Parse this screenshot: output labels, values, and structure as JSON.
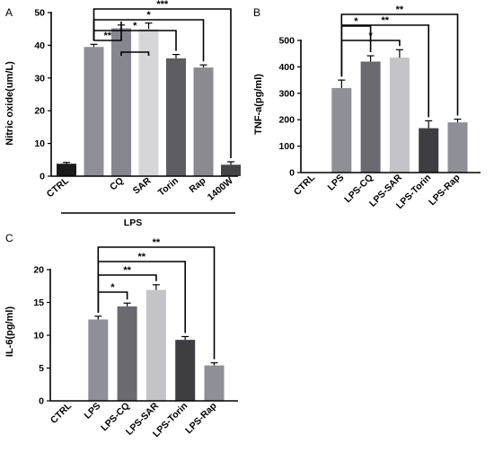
{
  "chart_data": [
    {
      "id": "A",
      "type": "bar",
      "panel_label": "A",
      "ylabel": "Nitric oxide(um/L)",
      "ylim": [
        0,
        50
      ],
      "yticks": [
        0,
        10,
        20,
        30,
        40,
        50
      ],
      "categories": [
        "CTRL",
        "",
        "CQ",
        "SAR",
        "Torin",
        "Rap",
        "1400W"
      ],
      "values": [
        3.8,
        39.5,
        45.2,
        45.0,
        36.0,
        33.2,
        3.5
      ],
      "errors": [
        0.4,
        0.8,
        1.0,
        1.8,
        1.2,
        0.8,
        0.9
      ],
      "colors": [
        "#1a1a1a",
        "#8f8f97",
        "#86868e",
        "#d6d6d8",
        "#5e5e62",
        "#8a8a90",
        "#444446"
      ],
      "group_label": "LPS",
      "significance": [
        {
          "from": 1,
          "to": 6,
          "label": "***"
        },
        {
          "from": 1,
          "to": 5,
          "label": "*"
        },
        {
          "from": 1,
          "to": 4,
          "label": "*"
        },
        {
          "from": 1,
          "to": 2,
          "label": "**"
        },
        {
          "from": 2,
          "to": 3,
          "label": ""
        }
      ]
    },
    {
      "id": "B",
      "type": "bar",
      "panel_label": "B",
      "ylabel": "TNF-a(pg/ml)",
      "ylim": [
        0,
        500
      ],
      "yticks": [
        0,
        100,
        200,
        300,
        400,
        500
      ],
      "categories": [
        "CTRL",
        "LPS",
        "LPS-CQ",
        "LPS-SAR",
        "LPS-Torin",
        "LPS-Rap"
      ],
      "values": [
        0,
        320,
        420,
        435,
        168,
        190
      ],
      "errors": [
        0,
        30,
        22,
        30,
        28,
        12
      ],
      "colors": [
        "#ffffff",
        "#8f8f97",
        "#6a6a70",
        "#c4c4c8",
        "#3e3e42",
        "#8f8f97"
      ],
      "significance": [
        {
          "from": 1,
          "to": 3,
          "label": "*"
        },
        {
          "from": 1,
          "to": 2,
          "label": "*"
        },
        {
          "from": 1,
          "to": 4,
          "label": "**"
        },
        {
          "from": 1,
          "to": 5,
          "label": "**"
        }
      ]
    },
    {
      "id": "C",
      "type": "bar",
      "panel_label": "C",
      "ylabel": "IL-6(pg/ml)",
      "ylim": [
        0,
        20
      ],
      "yticks": [
        0,
        5,
        10,
        15,
        20
      ],
      "categories": [
        "CTRL",
        "LPS",
        "LPS-CQ",
        "LPS-SAR",
        "LPS-Torin",
        "LPS-Rap"
      ],
      "values": [
        0,
        12.4,
        14.4,
        16.9,
        9.3,
        5.4
      ],
      "errors": [
        0,
        0.5,
        0.5,
        0.8,
        0.5,
        0.4
      ],
      "colors": [
        "#ffffff",
        "#8f8f97",
        "#6a6a70",
        "#c4c4c8",
        "#3e3e42",
        "#8f8f97"
      ],
      "significance": [
        {
          "from": 1,
          "to": 2,
          "label": "*"
        },
        {
          "from": 1,
          "to": 3,
          "label": "**"
        },
        {
          "from": 1,
          "to": 4,
          "label": "**"
        },
        {
          "from": 1,
          "to": 5,
          "label": "**"
        }
      ]
    }
  ]
}
